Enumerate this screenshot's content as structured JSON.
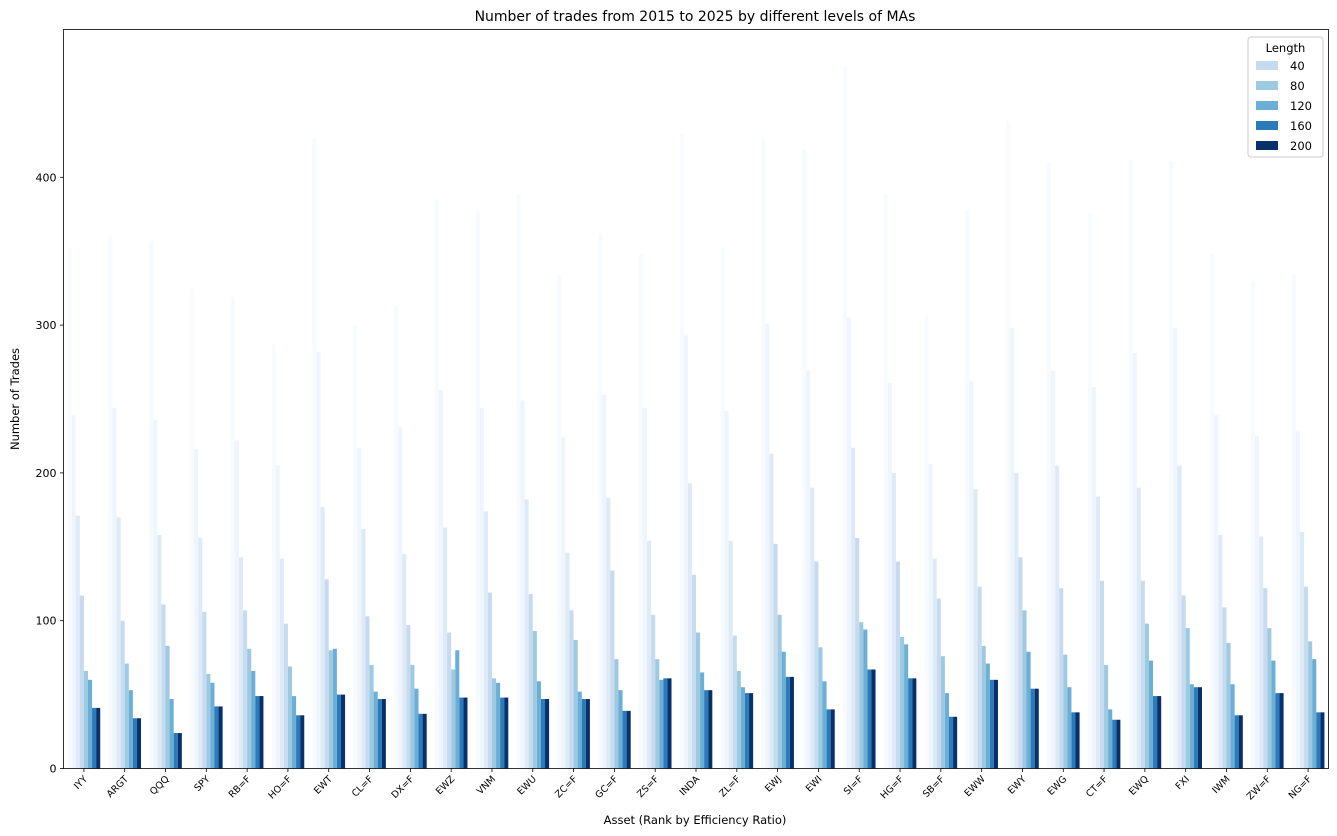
{
  "chart_data": {
    "type": "bar",
    "title": "Number of trades from 2015 to 2025 by different levels of MAs",
    "xlabel": "Asset (Rank by Efficiency Ratio)",
    "ylabel": "Number of Trades",
    "ylim": [
      0,
      500
    ],
    "yticks": [
      "0",
      "100",
      "200",
      "300",
      "400"
    ],
    "grid": false,
    "legend": {
      "title": "Length",
      "placement": "top-right",
      "entries": [
        "40",
        "80",
        "120",
        "160",
        "200"
      ]
    },
    "categories": [
      "IYY",
      "ARGT",
      "QQQ",
      "SPY",
      "RB=F",
      "HO=F",
      "EWT",
      "CL=F",
      "DX=F",
      "EWZ",
      "VNM",
      "EWU",
      "ZC=F",
      "GC=F",
      "ZS=F",
      "INDA",
      "ZL=F",
      "EWJ",
      "EWI",
      "SI=F",
      "HG=F",
      "SB=F",
      "EWW",
      "EWY",
      "EWG",
      "CT=F",
      "EWQ",
      "FXI",
      "IWM",
      "ZW=F",
      "NG=F"
    ],
    "note_faint_bars": "Each group contains additional faint bars for shorter lengths not listed in the legend.",
    "series": [
      {
        "values": [
          352,
          360,
          357,
          325,
          319,
          287,
          426,
          300,
          313,
          385,
          377,
          389,
          334,
          362,
          348,
          430,
          352,
          427,
          419,
          475,
          389,
          306,
          378,
          438,
          410,
          376,
          412,
          411,
          348,
          330,
          334
        ],
        "color": "#f7fbff"
      },
      {
        "values": [
          239,
          244,
          236,
          216,
          222,
          205,
          282,
          217,
          231,
          256,
          244,
          249,
          224,
          253,
          244,
          293,
          242,
          301,
          269,
          305,
          261,
          206,
          262,
          298,
          269,
          258,
          281,
          298,
          239,
          225,
          228
        ],
        "color": "#eef5fc"
      },
      {
        "values": [
          171,
          170,
          158,
          156,
          143,
          142,
          177,
          162,
          145,
          163,
          174,
          182,
          146,
          183,
          154,
          193,
          154,
          213,
          190,
          217,
          200,
          142,
          189,
          200,
          205,
          184,
          190,
          205,
          158,
          157,
          160
        ],
        "color": "#deebf7"
      },
      {
        "name": "40",
        "values": [
          117,
          100,
          111,
          106,
          107,
          98,
          128,
          103,
          97,
          92,
          119,
          118,
          107,
          134,
          104,
          131,
          90,
          152,
          140,
          156,
          140,
          115,
          123,
          143,
          122,
          127,
          127,
          117,
          109,
          122,
          123
        ],
        "color": "#c6dbef"
      },
      {
        "name": "80",
        "values": [
          66,
          71,
          83,
          64,
          81,
          69,
          80,
          70,
          70,
          67,
          61,
          93,
          87,
          74,
          74,
          92,
          66,
          104,
          82,
          99,
          89,
          76,
          83,
          107,
          77,
          70,
          98,
          95,
          85,
          95,
          86
        ],
        "color": "#9ecae1"
      },
      {
        "name": "120",
        "values": [
          60,
          53,
          47,
          58,
          66,
          49,
          81,
          52,
          54,
          80,
          58,
          59,
          52,
          53,
          60,
          65,
          55,
          79,
          59,
          94,
          84,
          51,
          71,
          79,
          55,
          40,
          73,
          57,
          57,
          73,
          74
        ],
        "color": "#6baed6"
      },
      {
        "name": "160",
        "values": [
          41,
          34,
          24,
          42,
          49,
          36,
          50,
          47,
          37,
          48,
          48,
          47,
          47,
          39,
          61,
          53,
          51,
          62,
          40,
          67,
          61,
          35,
          60,
          54,
          38,
          33,
          49,
          55,
          36,
          51,
          38
        ],
        "color": "#2b7bba"
      },
      {
        "name": "200",
        "values": [
          41,
          34,
          24,
          42,
          49,
          36,
          50,
          47,
          37,
          48,
          48,
          47,
          47,
          39,
          61,
          53,
          51,
          62,
          40,
          67,
          61,
          35,
          60,
          54,
          38,
          33,
          49,
          55,
          36,
          51,
          38
        ],
        "color": "#08306b"
      }
    ]
  }
}
